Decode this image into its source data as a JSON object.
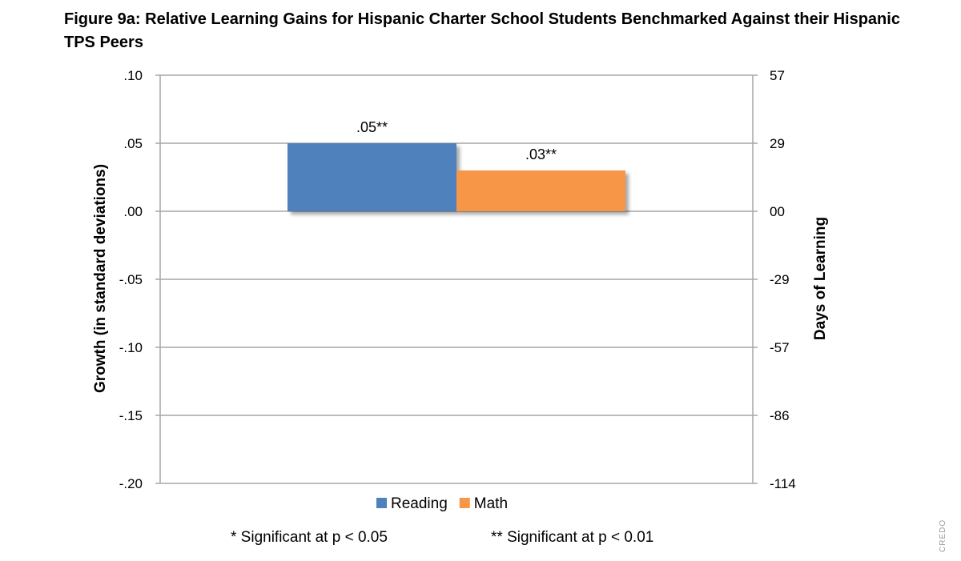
{
  "title": "Figure 9a: Relative Learning Gains for Hispanic Charter School Students Benchmarked Against their Hispanic TPS Peers",
  "watermark": "CREDO",
  "chart_data": {
    "type": "bar",
    "categories": [
      ""
    ],
    "series": [
      {
        "name": "Reading",
        "values": [
          0.05
        ],
        "color": "#4F81BD",
        "label": ".05**"
      },
      {
        "name": "Math",
        "values": [
          0.03
        ],
        "color": "#F79646",
        "label": ".03**"
      }
    ],
    "ylabel": "Growth (in standard deviations)",
    "ylabel_right": "Days of Learning",
    "ylim": [
      -0.2,
      0.1
    ],
    "y_ticks": [
      ".10",
      ".05",
      ".00",
      "-.05",
      "-.10",
      "-.15",
      "-.20"
    ],
    "y2_ticks": [
      "57",
      "29",
      "00",
      "-29",
      "-57",
      "-86",
      "-114"
    ],
    "grid": true,
    "legend_position": "bottom"
  },
  "notes": {
    "sig05": "* Significant at p < 0.05",
    "sig01": "** Significant at p < 0.01"
  }
}
